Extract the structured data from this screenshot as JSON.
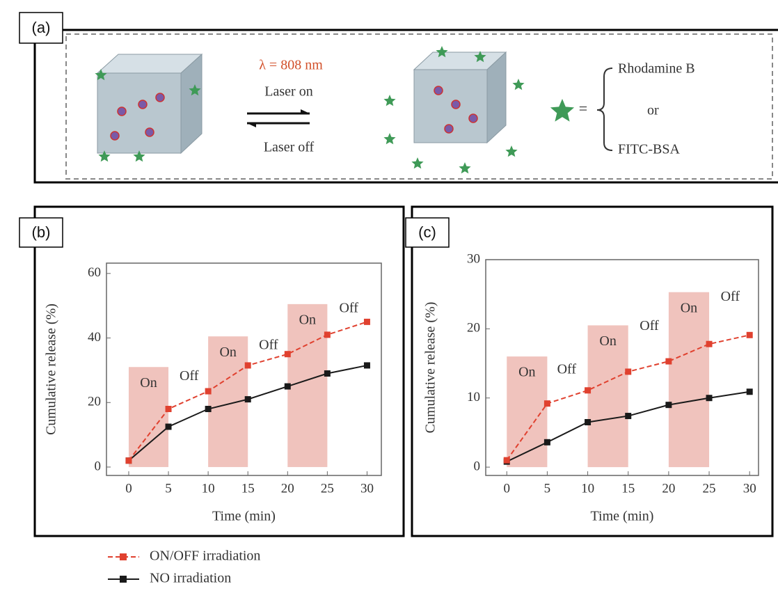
{
  "panel_a": {
    "label": "(a)",
    "wavelength": "λ = 808 nm",
    "laser_on": "Laser on",
    "laser_off": "Laser off",
    "equals": "=",
    "option_1": "Rhodamine B",
    "option_or": "or",
    "option_2": "FITC-BSA"
  },
  "chart_data": [
    {
      "type": "line",
      "panel": "(b)",
      "xlabel": "Time (min)",
      "ylabel": "Cumulative release (%)",
      "x": [
        0,
        5,
        10,
        15,
        20,
        25,
        30
      ],
      "xlim": [
        -2.8,
        31.8
      ],
      "xticks": [
        0,
        5,
        10,
        15,
        20,
        25,
        30
      ],
      "ylim": [
        -2.6,
        63.2
      ],
      "yticks": [
        0,
        20,
        40,
        60
      ],
      "shaded": [
        {
          "x": [
            0,
            5
          ],
          "top": 31,
          "label": "On"
        },
        {
          "x": [
            10,
            15
          ],
          "top": 40.5,
          "label": "On"
        },
        {
          "x": [
            20,
            25
          ],
          "top": 50.5,
          "label": "On"
        }
      ],
      "annotations": [
        {
          "text": "Off",
          "x": 7.6,
          "y": 28
        },
        {
          "text": "Off",
          "x": 17.6,
          "y": 37.5
        },
        {
          "text": "Off",
          "x": 27.7,
          "y": 49
        }
      ],
      "series": [
        {
          "name": "ON/OFF irradiation",
          "color": "#e0412f",
          "dashed": true,
          "values": [
            2,
            18,
            23.5,
            31.5,
            35,
            41,
            45
          ]
        },
        {
          "name": "NO irradiation",
          "color": "#1a1a1a",
          "dashed": false,
          "values": [
            2,
            12.5,
            18,
            21,
            25,
            29,
            31.5
          ]
        }
      ]
    },
    {
      "type": "line",
      "panel": "(c)",
      "xlabel": "Time (min)",
      "ylabel": "Cumulative release (%)",
      "x": [
        0,
        5,
        10,
        15,
        20,
        25,
        30
      ],
      "xlim": [
        -2.6,
        31.1
      ],
      "xticks": [
        0,
        5,
        10,
        15,
        20,
        25,
        30
      ],
      "ylim": [
        -1.2,
        30
      ],
      "yticks": [
        0,
        10,
        20,
        30
      ],
      "shaded": [
        {
          "x": [
            0,
            5
          ],
          "top": 16,
          "label": "On"
        },
        {
          "x": [
            10,
            15
          ],
          "top": 20.5,
          "label": "On"
        },
        {
          "x": [
            20,
            25
          ],
          "top": 25.3,
          "label": "On"
        }
      ],
      "annotations": [
        {
          "text": "Off",
          "x": 7.4,
          "y": 14
        },
        {
          "text": "Off",
          "x": 17.6,
          "y": 20.3
        },
        {
          "text": "Off",
          "x": 27.6,
          "y": 24.5
        }
      ],
      "series": [
        {
          "color": "#e0412f",
          "dashed": true,
          "values": [
            1,
            9.2,
            11.1,
            13.8,
            15.3,
            17.8,
            19.1
          ]
        },
        {
          "color": "#1a1a1a",
          "dashed": false,
          "values": [
            0.8,
            3.6,
            6.5,
            7.4,
            9,
            10,
            10.9
          ]
        }
      ]
    }
  ]
}
